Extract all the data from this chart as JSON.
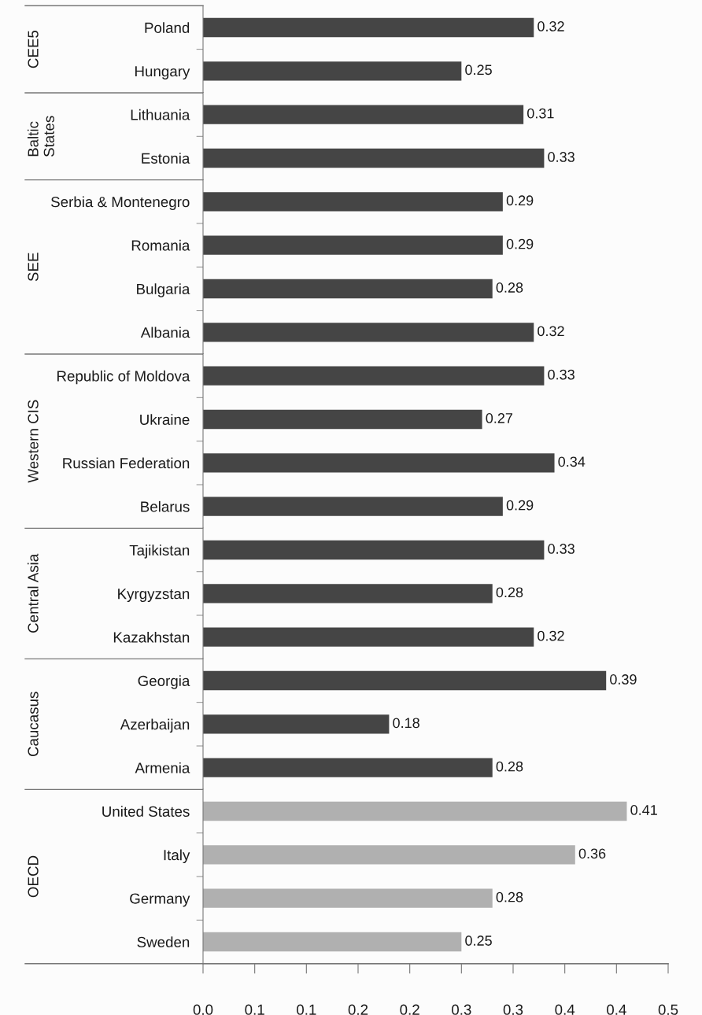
{
  "chart_data": [
    {
      "type": "bar",
      "orientation": "horizontal",
      "ylabel": "CEE5",
      "categories": [
        "Poland",
        "Hungary"
      ],
      "values": [
        0.32,
        0.25
      ],
      "colors": [
        "#454545",
        "#454545"
      ],
      "data_labels": true,
      "xlim": [
        0,
        0.45
      ],
      "tick_labels": "y"
    },
    {
      "type": "bar",
      "orientation": "horizontal",
      "ylabel": "Baltic\nStates",
      "categories": [
        "Lithuania",
        "Estonia"
      ],
      "values": [
        0.31,
        0.33
      ],
      "colors": [
        "#454545",
        "#454545"
      ],
      "data_labels": true,
      "xlim": [
        0,
        0.45
      ],
      "tick_labels": "y"
    },
    {
      "type": "bar",
      "orientation": "horizontal",
      "ylabel": "SEE",
      "categories": [
        "Serbia & Montenegro",
        "Romania",
        "Bulgaria",
        "Albania"
      ],
      "values": [
        0.29,
        0.29,
        0.28,
        0.32
      ],
      "colors": [
        "#454545",
        "#454545",
        "#454545",
        "#454545"
      ],
      "data_labels": true,
      "xlim": [
        0,
        0.45
      ],
      "tick_labels": "y"
    },
    {
      "type": "bar",
      "orientation": "horizontal",
      "ylabel": "Western CIS",
      "categories": [
        "Republic of Moldova",
        "Ukraine",
        "Russian Federation",
        "Belarus"
      ],
      "values": [
        0.33,
        0.27,
        0.34,
        0.29
      ],
      "colors": [
        "#454545",
        "#454545",
        "#454545",
        "#454545"
      ],
      "data_labels": true,
      "xlim": [
        0,
        0.45
      ],
      "tick_labels": "y"
    },
    {
      "type": "bar",
      "orientation": "horizontal",
      "ylabel": "Central Asia",
      "categories": [
        "Tajikistan",
        "Kyrgyzstan",
        "Kazakhstan"
      ],
      "values": [
        0.33,
        0.28,
        0.32
      ],
      "colors": [
        "#454545",
        "#454545",
        "#454545"
      ],
      "data_labels": true,
      "xlim": [
        0,
        0.45
      ],
      "tick_labels": "y"
    },
    {
      "type": "bar",
      "orientation": "horizontal",
      "ylabel": "Caucasus",
      "categories": [
        "Georgia",
        "Azerbaijan",
        "Armenia"
      ],
      "values": [
        0.39,
        0.18,
        0.28
      ],
      "colors": [
        "#454545",
        "#454545",
        "#454545"
      ],
      "data_labels": true,
      "xlim": [
        0,
        0.45
      ],
      "tick_labels": "y"
    },
    {
      "type": "bar",
      "orientation": "horizontal",
      "ylabel": "OECD",
      "categories": [
        "United States",
        "Italy",
        "Germany",
        "Sweden"
      ],
      "values": [
        0.41,
        0.36,
        0.28,
        0.25
      ],
      "colors": [
        "#b0b0b0",
        "#b0b0b0",
        "#b0b0b0",
        "#b0b0b0"
      ],
      "data_labels": true,
      "xlim": [
        0,
        0.45
      ],
      "xticks": [
        {
          "value": 0,
          "label": "0.0"
        },
        {
          "value": 0.05,
          "label": "0.1"
        },
        {
          "value": 0.1,
          "label": "0.1"
        },
        {
          "value": 0.15,
          "label": "0.2"
        },
        {
          "value": 0.2,
          "label": "0.2"
        },
        {
          "value": 0.25,
          "label": "0.3"
        },
        {
          "value": 0.3,
          "label": "0.3"
        },
        {
          "value": 0.35,
          "label": "0.4"
        },
        {
          "value": 0.4,
          "label": "0.4"
        },
        {
          "value": 0.45,
          "label": "0.5"
        }
      ]
    }
  ]
}
